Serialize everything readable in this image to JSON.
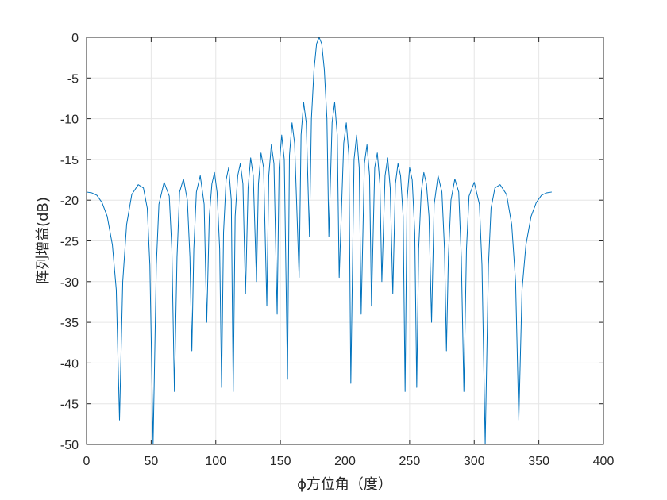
{
  "chart_data": {
    "type": "line",
    "title": "",
    "xlabel": "ϕ方位角（度）",
    "ylabel": "阵列增益(dB)",
    "xlim": [
      0,
      400
    ],
    "ylim": [
      -50,
      0
    ],
    "xticks": [
      0,
      50,
      100,
      150,
      200,
      250,
      300,
      350,
      400
    ],
    "yticks": [
      0,
      -5,
      -10,
      -15,
      -20,
      -25,
      -30,
      -35,
      -40,
      -45,
      -50
    ],
    "xtick_labels": [
      "0",
      "50",
      "100",
      "150",
      "200",
      "250",
      "300",
      "350",
      "400"
    ],
    "ytick_labels": [
      "0",
      "-5",
      "-10",
      "-15",
      "-20",
      "-25",
      "-30",
      "-35",
      "-40",
      "-45",
      "-50"
    ],
    "grid": true,
    "line_color": "#0072BD",
    "series": [
      {
        "values_description_is_visual_only": false,
        "points": [
          [
            0,
            -19.0
          ],
          [
            4,
            -19.1
          ],
          [
            8,
            -19.4
          ],
          [
            12,
            -20.3
          ],
          [
            16,
            -22.0
          ],
          [
            20,
            -25.5
          ],
          [
            23,
            -31.0
          ],
          [
            25.5,
            -47.0
          ],
          [
            28,
            -30.0
          ],
          [
            31,
            -23.0
          ],
          [
            35,
            -19.3
          ],
          [
            40,
            -18.1
          ],
          [
            44,
            -18.5
          ],
          [
            47,
            -21.0
          ],
          [
            49,
            -28.0
          ],
          [
            51.5,
            -50.0
          ],
          [
            54,
            -28.0
          ],
          [
            56,
            -20.5
          ],
          [
            60,
            -17.8
          ],
          [
            64,
            -19.5
          ],
          [
            66,
            -26.0
          ],
          [
            68,
            -43.5
          ],
          [
            70,
            -27.0
          ],
          [
            72,
            -19.0
          ],
          [
            75,
            -17.4
          ],
          [
            78,
            -20.0
          ],
          [
            80,
            -27.0
          ],
          [
            81.5,
            -38.5
          ],
          [
            83,
            -26.0
          ],
          [
            85,
            -19.0
          ],
          [
            88,
            -17.0
          ],
          [
            91,
            -20.5
          ],
          [
            93,
            -35.0
          ],
          [
            95,
            -22.0
          ],
          [
            97,
            -18.0
          ],
          [
            99,
            -16.6
          ],
          [
            101,
            -19.0
          ],
          [
            103,
            -26.0
          ],
          [
            104.5,
            -43.0
          ],
          [
            106,
            -24.0
          ],
          [
            108,
            -17.5
          ],
          [
            110,
            -16.0
          ],
          [
            112,
            -20.0
          ],
          [
            113.5,
            -43.5
          ],
          [
            115,
            -22.0
          ],
          [
            117,
            -17.0
          ],
          [
            119,
            -15.5
          ],
          [
            121,
            -18.0
          ],
          [
            123,
            -31.5
          ],
          [
            125,
            -18.5
          ],
          [
            127,
            -14.8
          ],
          [
            129,
            -17.0
          ],
          [
            131.5,
            -30.0
          ],
          [
            133,
            -18.0
          ],
          [
            135,
            -14.2
          ],
          [
            137,
            -16.0
          ],
          [
            139.5,
            -33.0
          ],
          [
            141,
            -17.0
          ],
          [
            143,
            -13.2
          ],
          [
            145,
            -15.5
          ],
          [
            147.5,
            -34.0
          ],
          [
            149,
            -16.0
          ],
          [
            151,
            -12.0
          ],
          [
            153,
            -15.0
          ],
          [
            155.5,
            -42.0
          ],
          [
            157,
            -14.5
          ],
          [
            159,
            -10.5
          ],
          [
            161,
            -13.0
          ],
          [
            164.5,
            -29.5
          ],
          [
            166,
            -12.0
          ],
          [
            168,
            -8.0
          ],
          [
            170,
            -10.5
          ],
          [
            172.5,
            -24.5
          ],
          [
            174,
            -10.0
          ],
          [
            176,
            -4.0
          ],
          [
            178,
            -0.8
          ],
          [
            180,
            0.0
          ],
          [
            182,
            -0.8
          ],
          [
            184,
            -4.0
          ],
          [
            186,
            -10.0
          ],
          [
            187.5,
            -24.5
          ],
          [
            190,
            -10.5
          ],
          [
            192,
            -8.0
          ],
          [
            194,
            -12.0
          ],
          [
            195.5,
            -29.5
          ],
          [
            199,
            -13.0
          ],
          [
            201,
            -10.5
          ],
          [
            203,
            -14.5
          ],
          [
            204.5,
            -42.5
          ],
          [
            207,
            -15.0
          ],
          [
            209,
            -12.0
          ],
          [
            211,
            -16.0
          ],
          [
            212.5,
            -34.0
          ],
          [
            215,
            -15.5
          ],
          [
            217,
            -13.2
          ],
          [
            219,
            -17.0
          ],
          [
            220.5,
            -33.0
          ],
          [
            223,
            -16.0
          ],
          [
            225,
            -14.2
          ],
          [
            227,
            -18.0
          ],
          [
            228.5,
            -30.0
          ],
          [
            231,
            -17.0
          ],
          [
            233,
            -14.8
          ],
          [
            235,
            -18.5
          ],
          [
            237,
            -31.5
          ],
          [
            239,
            -18.0
          ],
          [
            241,
            -15.5
          ],
          [
            243,
            -17.0
          ],
          [
            245,
            -22.0
          ],
          [
            246.5,
            -43.5
          ],
          [
            248,
            -20.0
          ],
          [
            250,
            -16.0
          ],
          [
            252,
            -17.5
          ],
          [
            254,
            -24.0
          ],
          [
            255.5,
            -43.0
          ],
          [
            257,
            -26.0
          ],
          [
            259,
            -19.0
          ],
          [
            261,
            -16.6
          ],
          [
            263,
            -18.0
          ],
          [
            265,
            -22.0
          ],
          [
            267,
            -35.0
          ],
          [
            269,
            -20.5
          ],
          [
            272,
            -17.0
          ],
          [
            275,
            -19.0
          ],
          [
            277,
            -26.0
          ],
          [
            278.5,
            -38.5
          ],
          [
            280,
            -27.0
          ],
          [
            282,
            -20.0
          ],
          [
            285,
            -17.4
          ],
          [
            288,
            -19.0
          ],
          [
            290,
            -27.0
          ],
          [
            292,
            -43.5
          ],
          [
            294,
            -26.0
          ],
          [
            296,
            -19.5
          ],
          [
            300,
            -17.8
          ],
          [
            304,
            -20.5
          ],
          [
            306,
            -28.0
          ],
          [
            308.5,
            -50.0
          ],
          [
            311,
            -28.0
          ],
          [
            313,
            -21.0
          ],
          [
            316,
            -18.5
          ],
          [
            320,
            -18.1
          ],
          [
            325,
            -19.3
          ],
          [
            329,
            -23.0
          ],
          [
            332,
            -30.0
          ],
          [
            334.5,
            -47.0
          ],
          [
            337,
            -31.0
          ],
          [
            340,
            -25.5
          ],
          [
            344,
            -22.0
          ],
          [
            348,
            -20.3
          ],
          [
            352,
            -19.4
          ],
          [
            356,
            -19.1
          ],
          [
            360,
            -19.0
          ]
        ]
      }
    ]
  }
}
